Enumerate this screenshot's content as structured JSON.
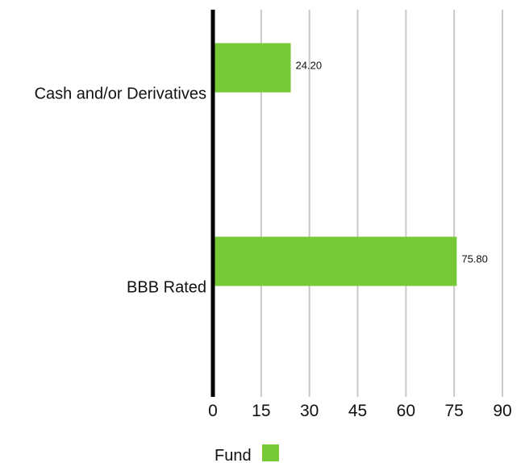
{
  "chart_data": {
    "type": "bar",
    "orientation": "horizontal",
    "categories": [
      "Cash and/or Derivatives",
      "BBB Rated"
    ],
    "series": [
      {
        "name": "Fund",
        "values": [
          24.2,
          75.8
        ],
        "data_labels": [
          "24.20",
          "75.80"
        ],
        "color": "#76c935"
      }
    ],
    "xlim": [
      0,
      90
    ],
    "xticks": [
      0,
      15,
      30,
      45,
      60,
      75,
      90
    ],
    "grid": true,
    "legend_placement": "bottom-left",
    "colors": {
      "grid": "#c8c8c8",
      "axis": "#000000"
    }
  }
}
